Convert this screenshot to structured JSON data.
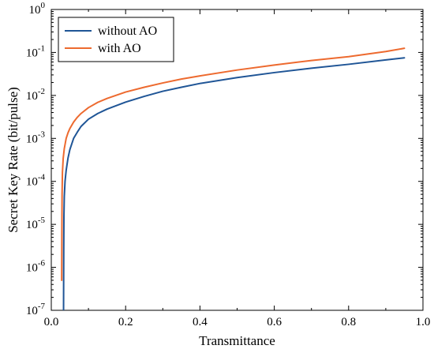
{
  "chart_data": {
    "type": "line",
    "xlabel": "Transmittance",
    "ylabel": "Secret Key Rate (bit/pulse)",
    "x_scale": "linear",
    "y_scale": "log",
    "xlim": [
      0.0,
      1.0
    ],
    "ylim": [
      1e-07,
      1
    ],
    "x_ticks": [
      "0.0",
      "0.2",
      "0.4",
      "0.6",
      "0.8",
      "1.0"
    ],
    "y_ticks": [
      {
        "base": "10",
        "exp": "-7"
      },
      {
        "base": "10",
        "exp": "-6"
      },
      {
        "base": "10",
        "exp": "-5"
      },
      {
        "base": "10",
        "exp": "-4"
      },
      {
        "base": "10",
        "exp": "-3"
      },
      {
        "base": "10",
        "exp": "-2"
      },
      {
        "base": "10",
        "exp": "-1"
      },
      {
        "base": "10",
        "exp": "0"
      }
    ],
    "grid": false,
    "legend_position": "top-left",
    "series": [
      {
        "name": "without AO",
        "color": "#1f5596",
        "x": [
          0.033,
          0.0335,
          0.034,
          0.035,
          0.037,
          0.04,
          0.045,
          0.05,
          0.06,
          0.07,
          0.08,
          0.1,
          0.125,
          0.15,
          0.2,
          0.25,
          0.3,
          0.35,
          0.4,
          0.5,
          0.6,
          0.7,
          0.8,
          0.9,
          0.95
        ],
        "y": [
          1e-07,
          2.5e-06,
          1.5e-05,
          4.5e-05,
          0.0001,
          0.00018,
          0.00035,
          0.00055,
          0.001,
          0.0014,
          0.0019,
          0.0028,
          0.0038,
          0.0048,
          0.007,
          0.0095,
          0.0125,
          0.0155,
          0.019,
          0.026,
          0.034,
          0.043,
          0.053,
          0.067,
          0.075
        ]
      },
      {
        "name": "with AO",
        "color": "#ed6a2f",
        "x": [
          0.028,
          0.0285,
          0.029,
          0.03,
          0.032,
          0.035,
          0.04,
          0.045,
          0.05,
          0.06,
          0.07,
          0.08,
          0.1,
          0.125,
          0.15,
          0.2,
          0.25,
          0.3,
          0.35,
          0.4,
          0.5,
          0.6,
          0.7,
          0.8,
          0.9,
          0.95
        ],
        "y": [
          5e-07,
          7e-06,
          5e-05,
          0.00016,
          0.00034,
          0.00058,
          0.001,
          0.00135,
          0.0017,
          0.0024,
          0.0031,
          0.0038,
          0.0052,
          0.0069,
          0.0085,
          0.012,
          0.0155,
          0.0195,
          0.024,
          0.0285,
          0.039,
          0.051,
          0.065,
          0.08,
          0.105,
          0.125
        ]
      }
    ]
  }
}
